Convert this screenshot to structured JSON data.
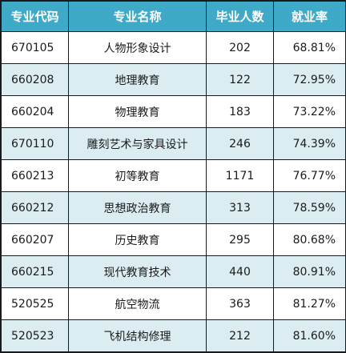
{
  "table": {
    "headers": [
      "专业代码",
      "专业名称",
      "毕业人数",
      "就业率"
    ],
    "rows": [
      [
        "670105",
        "人物形象设计",
        "202",
        "68.81%"
      ],
      [
        "660208",
        "地理教育",
        "122",
        "72.95%"
      ],
      [
        "660204",
        "物理教育",
        "183",
        "73.22%"
      ],
      [
        "670110",
        "雕刻艺术与家具设计",
        "246",
        "74.39%"
      ],
      [
        "660213",
        "初等教育",
        "1171",
        "76.77%"
      ],
      [
        "660212",
        "思想政治教育",
        "313",
        "78.59%"
      ],
      [
        "660207",
        "历史教育",
        "295",
        "80.68%"
      ],
      [
        "660215",
        "现代教育技术",
        "440",
        "80.91%"
      ],
      [
        "520525",
        "航空物流",
        "363",
        "81.27%"
      ],
      [
        "520523",
        "飞机结构修理",
        "212",
        "81.60%"
      ]
    ]
  },
  "colors": {
    "header_bg": "#3fa9c8",
    "header_text": "#ffffff",
    "stripe_bg": "#dcedf2",
    "border": "#1a1a1a"
  }
}
